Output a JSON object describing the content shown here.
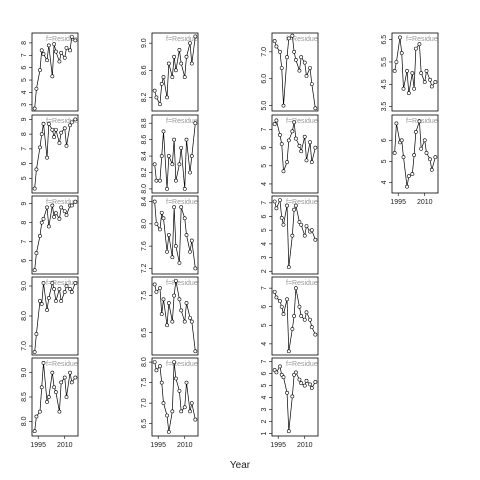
{
  "chart_data": {
    "type": "line",
    "xlabel": "Year",
    "x": [
      1993,
      1994,
      1996,
      1997,
      1998,
      2000,
      2001,
      2003,
      2004,
      2005,
      2007,
      2008,
      2010,
      2011,
      2013,
      2014,
      2016
    ],
    "xlim": [
      1991.5,
      2017.5
    ],
    "xticks": [
      1995,
      2010
    ],
    "panels": [
      {
        "strip": "f=Residue",
        "ylim": [
          2.5,
          8.8
        ],
        "yticks": [
          3,
          4,
          5,
          6,
          7,
          8
        ],
        "values": [
          2.7,
          4.3,
          5.8,
          7.4,
          7.1,
          6.6,
          7.8,
          5.3,
          7.9,
          7.3,
          6.5,
          7.2,
          6.8,
          7.6,
          7.4,
          8.5,
          8.2
        ]
      },
      {
        "strip": "f=Residue",
        "ylim": [
          4,
          9.3
        ],
        "yticks": [
          5,
          6,
          7,
          8,
          9
        ],
        "values": [
          4.3,
          5.6,
          7.1,
          8.0,
          8.7,
          6.4,
          8.7,
          8.3,
          7.8,
          8.3,
          7.4,
          8.1,
          8.4,
          7.2,
          8.6,
          8.8,
          9.0
        ]
      },
      {
        "strip": "f=Residue",
        "ylim": [
          5.3,
          9.4
        ],
        "yticks": [
          6,
          7,
          8,
          9
        ],
        "values": [
          5.5,
          6.4,
          7.3,
          8.0,
          8.2,
          8.8,
          7.8,
          8.9,
          8.3,
          8.5,
          8.2,
          8.8,
          8.6,
          8.4,
          8.9,
          8.9,
          9.1
        ]
      },
      {
        "strip": "f=Residue",
        "ylim": [
          6.7,
          9.3
        ],
        "yticks": [
          {
            "value": 7,
            "label": "7.0"
          },
          {
            "value": 8,
            "label": "8.0"
          },
          {
            "value": 9,
            "label": "9.0"
          }
        ],
        "values": [
          6.8,
          7.4,
          8.5,
          8.4,
          9.1,
          8.2,
          8.6,
          9.1,
          8.9,
          8.5,
          8.9,
          8.5,
          8.8,
          9.0,
          8.9,
          8.8,
          9.1
        ]
      },
      {
        "strip": "f=Residue",
        "ylim": [
          7.7,
          9.3
        ],
        "yticks": [
          {
            "value": 8,
            "label": "8.0"
          },
          8.5,
          {
            "value": 9,
            "label": "9.0"
          }
        ],
        "values": [
          7.8,
          8.1,
          8.2,
          8.7,
          9.2,
          8.4,
          8.5,
          9.0,
          8.7,
          8.6,
          8.2,
          8.8,
          8.9,
          8.5,
          9.0,
          8.8,
          8.9
        ]
      },
      {
        "strip": "f=Residue",
        "ylim": [
          8.0,
          9.15
        ],
        "yticks": [
          8.2,
          8.6,
          {
            "value": 9,
            "label": "9.0"
          }
        ],
        "values": [
          8.3,
          8.2,
          8.1,
          8.4,
          8.5,
          8.2,
          8.7,
          8.5,
          8.8,
          8.6,
          8.9,
          8.7,
          8.5,
          8.8,
          9.0,
          8.7,
          9.1
        ]
      },
      {
        "strip": "f=Residue",
        "ylim": [
          7.95,
          8.9
        ],
        "yticks": [
          {
            "value": 8,
            "label": "8.0"
          },
          8.2,
          8.4,
          8.6,
          8.8
        ],
        "values": [
          8.3,
          8.1,
          8.1,
          8.4,
          8.7,
          8.0,
          8.4,
          8.3,
          8.6,
          8.1,
          8.3,
          8.5,
          8.0,
          8.6,
          8.2,
          8.4,
          8.8
        ]
      },
      {
        "strip": "f=Residue",
        "ylim": [
          7.1,
          8.5
        ],
        "yticks": [
          7.2,
          7.6,
          {
            "value": 8,
            "label": "8.0"
          },
          8.4
        ],
        "values": [
          8.4,
          8.0,
          7.9,
          8.2,
          8.1,
          7.5,
          7.8,
          7.4,
          8.3,
          7.6,
          7.3,
          8.3,
          8.1,
          7.8,
          7.5,
          7.7,
          7.2
        ]
      },
      {
        "strip": "f=Residue",
        "ylim": [
          5.9,
          8.0
        ],
        "yticks": [
          6.5,
          7.5
        ],
        "values": [
          7.8,
          7.6,
          7.7,
          7.0,
          7.4,
          6.7,
          7.3,
          6.8,
          7.5,
          7.9,
          7.4,
          7.1,
          6.8,
          7.3,
          6.9,
          6.8,
          6.0
        ]
      },
      {
        "strip": "f=Residue",
        "ylim": [
          6.2,
          8.1
        ],
        "yticks": [
          6.5,
          {
            "value": 7,
            "label": "7.0"
          },
          7.5,
          {
            "value": 8,
            "label": "8.0"
          }
        ],
        "values": [
          8.0,
          7.8,
          7.9,
          7.5,
          7.0,
          6.7,
          6.3,
          6.8,
          8.0,
          7.6,
          7.3,
          6.8,
          6.9,
          7.5,
          6.8,
          7.0,
          6.6
        ]
      },
      {
        "strip": "f=Residue",
        "ylim": [
          4.8,
          7.7
        ],
        "yticks": [
          {
            "value": 5,
            "label": "5.0"
          },
          {
            "value": 6,
            "label": "6.0"
          },
          {
            "value": 7,
            "label": "7.0"
          }
        ],
        "values": [
          7.4,
          7.2,
          7.0,
          6.4,
          5.0,
          6.8,
          7.5,
          7.6,
          7.0,
          6.7,
          6.3,
          6.8,
          6.6,
          6.1,
          6.4,
          5.8,
          4.9
        ]
      },
      {
        "strip": "f=Residue",
        "ylim": [
          3.5,
          7.8
        ],
        "yticks": [
          4,
          5,
          6,
          7
        ],
        "values": [
          7.3,
          7.5,
          6.7,
          6.2,
          4.7,
          5.2,
          6.4,
          6.9,
          7.4,
          6.5,
          6.1,
          5.8,
          6.6,
          5.3,
          6.3,
          5.2,
          6.0
        ]
      },
      {
        "strip": "f=Residue",
        "ylim": [
          1.8,
          7.5
        ],
        "yticks": [
          2,
          3,
          4,
          5,
          6,
          7
        ],
        "values": [
          7.1,
          6.6,
          7.2,
          5.9,
          5.4,
          6.8,
          2.3,
          4.6,
          6.5,
          6.8,
          5.6,
          5.4,
          4.6,
          5.3,
          4.9,
          5.0,
          4.3
        ]
      },
      {
        "strip": "f=Residue",
        "ylim": [
          3.4,
          7.6
        ],
        "yticks": [
          4,
          5,
          6,
          7
        ],
        "values": [
          6.8,
          6.5,
          6.3,
          6.0,
          5.6,
          6.4,
          3.6,
          4.8,
          5.5,
          7.0,
          6.0,
          5.5,
          5.3,
          5.7,
          5.3,
          4.9,
          4.5
        ]
      },
      {
        "strip": "f=Residue",
        "ylim": [
          0.8,
          7.3
        ],
        "yticks": [
          1,
          2,
          3,
          4,
          5,
          6,
          7
        ],
        "values": [
          6.3,
          6.1,
          6.6,
          5.9,
          5.7,
          4.4,
          1.2,
          4.1,
          5.9,
          6.1,
          5.5,
          5.2,
          5.0,
          5.4,
          5.1,
          4.8,
          5.3
        ]
      },
      {
        "strip": "f=Residue",
        "ylim": [
          3.3,
          6.8
        ],
        "yticks": [
          3.5,
          4.5,
          5.5,
          6.5
        ],
        "values": [
          5.1,
          5.5,
          6.6,
          5.9,
          4.3,
          5.1,
          4.1,
          5.0,
          4.3,
          6.1,
          6.3,
          5.0,
          4.6,
          5.1,
          4.7,
          4.4,
          4.6
        ]
      },
      {
        "strip": "f=Residue",
        "ylim": [
          3.5,
          7.2
        ],
        "yticks": [
          4,
          5,
          6
        ],
        "values": [
          5.4,
          6.8,
          5.9,
          6.0,
          5.2,
          3.8,
          4.3,
          4.4,
          5.3,
          6.4,
          6.9,
          5.6,
          6.0,
          5.4,
          5.1,
          4.6,
          5.2
        ]
      }
    ]
  }
}
